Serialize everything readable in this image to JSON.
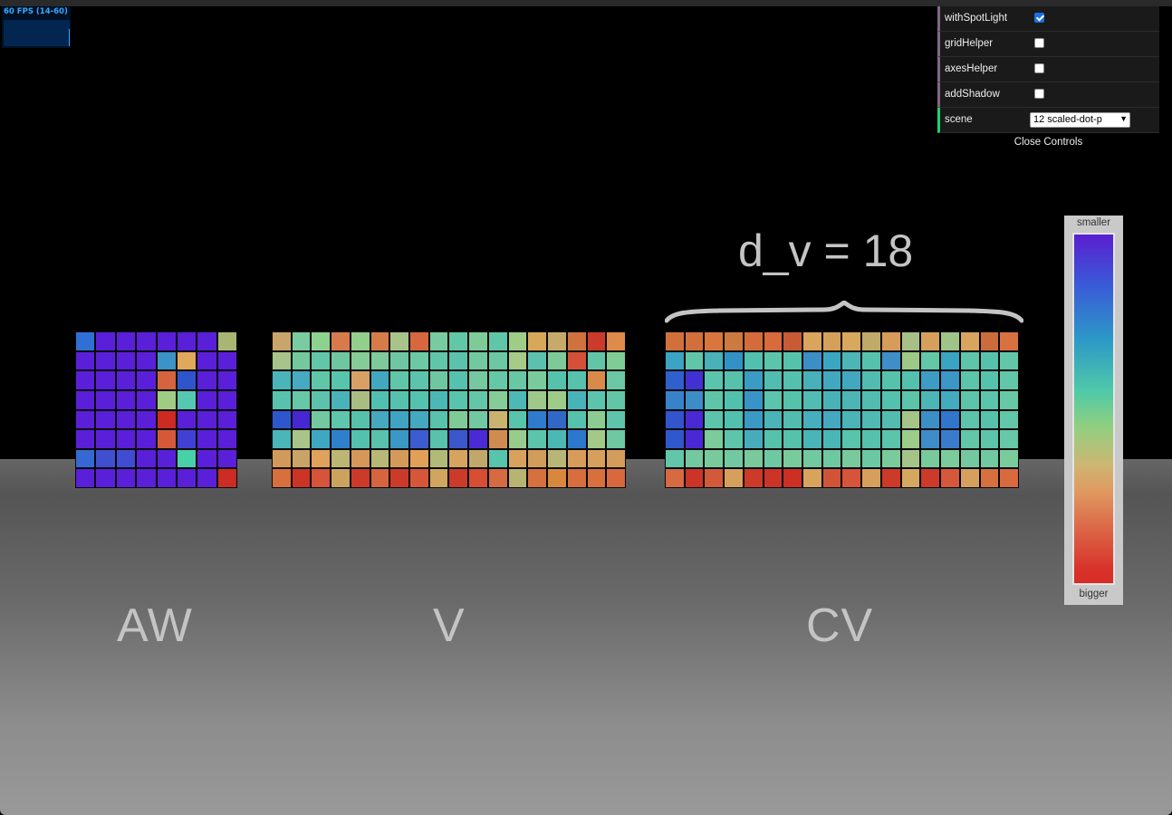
{
  "fps": {
    "text": "60 FPS (14-60)"
  },
  "gui": {
    "rows": [
      {
        "label": "withSpotLight",
        "checked": true
      },
      {
        "label": "gridHelper",
        "checked": false
      },
      {
        "label": "axesHelper",
        "checked": false
      },
      {
        "label": "addShadow",
        "checked": false
      }
    ],
    "scene_label": "scene",
    "scene_value": "12 scaled-dot-p",
    "close_label": "Close Controls"
  },
  "scene": {
    "dv_label": "d_v = 18",
    "labels": {
      "aw": "AW",
      "v": "V",
      "cv": "CV"
    },
    "legend": {
      "top": "smaller",
      "bottom": "bigger"
    }
  },
  "matrices": {
    "aw": {
      "cols": 8,
      "rows": [
        [
          "#2f6fd6",
          "#5a1fd8",
          "#5a1fd8",
          "#5a1fd8",
          "#5a1fd8",
          "#5a1fd8",
          "#5a1fd8",
          "#a9b673"
        ],
        [
          "#5a1fd8",
          "#5a1fd8",
          "#5a1fd8",
          "#5a1fd8",
          "#3b93c6",
          "#e0a85c",
          "#5a1fd8",
          "#5a1fd8"
        ],
        [
          "#5a1fd8",
          "#5a1fd8",
          "#5a1fd8",
          "#5a1fd8",
          "#d4643e",
          "#2f55cc",
          "#5a1fd8",
          "#5a1fd8"
        ],
        [
          "#5a1fd8",
          "#5a1fd8",
          "#5a1fd8",
          "#5a1fd8",
          "#9fcc82",
          "#54c8b0",
          "#5a1fd8",
          "#5a1fd8"
        ],
        [
          "#5a1fd8",
          "#5a1fd8",
          "#5a1fd8",
          "#5a1fd8",
          "#cc2a22",
          "#5a1fd8",
          "#5a1fd8",
          "#5a1fd8"
        ],
        [
          "#5a1fd8",
          "#5a1fd8",
          "#5a1fd8",
          "#5a1fd8",
          "#d4583a",
          "#4040d2",
          "#5a1fd8",
          "#5a1fd8"
        ],
        [
          "#3568d2",
          "#3f4fd0",
          "#3e4dd2",
          "#5a1fd8",
          "#5a1fd8",
          "#48d0a8",
          "#5a1fd8",
          "#5a1fd8"
        ],
        [
          "#5a1fd8",
          "#5a1fd8",
          "#5a1fd8",
          "#5a1fd8",
          "#5a1fd8",
          "#5a1fd8",
          "#5a1fd8",
          "#cc2c24"
        ]
      ]
    },
    "v": {
      "cols": 18,
      "rows": [
        [
          "#c9a56b",
          "#79cba0",
          "#8ed28f",
          "#d97a4c",
          "#92cf8c",
          "#d67c48",
          "#a9c48a",
          "#d8663e",
          "#77cb9e",
          "#62c7a6",
          "#7ecb98",
          "#60c6a8",
          "#9fcd88",
          "#d8a85a",
          "#c7aa6a",
          "#d0723e",
          "#cc3a2c",
          "#de8a4a"
        ],
        [
          "#a8c48a",
          "#74c99c",
          "#62c6a8",
          "#6fc7a2",
          "#86cc96",
          "#7fca9a",
          "#6ec6a2",
          "#6cc9a4",
          "#60c6aa",
          "#5dc2ac",
          "#74c8a0",
          "#6cc8a2",
          "#a6ca88",
          "#5cc0ae",
          "#7dca98",
          "#d45038",
          "#62c5a8",
          "#7fcc96"
        ],
        [
          "#4bb4b8",
          "#46aac0",
          "#60c6a8",
          "#57c4ac",
          "#d9a066",
          "#42a8c0",
          "#60c6aa",
          "#5cc4ac",
          "#6fc7a2",
          "#54c2ae",
          "#75c8a0",
          "#64c8a6",
          "#68c8a4",
          "#7acb9c",
          "#56c2ac",
          "#56c2ac",
          "#d98a4a",
          "#6cc8a4"
        ],
        [
          "#58c2ac",
          "#66c8a6",
          "#5cc2ac",
          "#48b4ba",
          "#aabc82",
          "#52c0b0",
          "#56c2ae",
          "#54c2ae",
          "#4cb8b6",
          "#58c4ac",
          "#64c6a8",
          "#86cc96",
          "#4eb8b4",
          "#9ec98a",
          "#9dcc88",
          "#48b4ba",
          "#5cc4ac",
          "#62c6a6"
        ],
        [
          "#2f57cc",
          "#4628d2",
          "#74c8a0",
          "#5ec6aa",
          "#56c2ac",
          "#46a8c0",
          "#3ea4c2",
          "#44a8c0",
          "#58c2ac",
          "#7ecb98",
          "#72c8a0",
          "#c9b36e",
          "#58c4ac",
          "#2f7bcc",
          "#3168c8",
          "#56c2ac",
          "#8ccc90",
          "#5ec4aa"
        ],
        [
          "#4ab6b8",
          "#a8c48a",
          "#3ea8c2",
          "#2f80cc",
          "#54c0ae",
          "#58c2ac",
          "#3a98c4",
          "#3c5cd0",
          "#58c2ac",
          "#3a58cc",
          "#4a2ad4",
          "#d08c50",
          "#98cc8c",
          "#5cc4aa",
          "#4cb8b4",
          "#2c78cc",
          "#a4c888",
          "#6ec8a2"
        ],
        [
          "#d29a5a",
          "#c8a468",
          "#e0a25a",
          "#bcb672",
          "#d6985a",
          "#b8b876",
          "#d49a5a",
          "#e0a058",
          "#b2ba78",
          "#d6a45e",
          "#c0a86a",
          "#58c4ac",
          "#d8a25e",
          "#d29c5a",
          "#b8b676",
          "#d89c5a",
          "#d6a05c",
          "#d49c5c"
        ],
        [
          "#d8703e",
          "#cc3428",
          "#d6543a",
          "#cca35e",
          "#cc3a2a",
          "#d6643e",
          "#cc3a2a",
          "#d6563a",
          "#d0a65e",
          "#cc3a2a",
          "#d64e34",
          "#d66a40",
          "#b6b470",
          "#d6703e",
          "#d8883c",
          "#d66e3e",
          "#d8703e",
          "#d8683e"
        ]
      ]
    },
    "cv": {
      "cols": 18,
      "rows": [
        [
          "#d2703c",
          "#d2703c",
          "#d8763e",
          "#cc7a40",
          "#d26c3c",
          "#d86a3c",
          "#c85a36",
          "#d8a45e",
          "#d4a05a",
          "#d8a85e",
          "#c0aa6a",
          "#d89c5a",
          "#a8c088",
          "#d6a05c",
          "#a0c488",
          "#d8a45e",
          "#cc6c3c",
          "#d87040"
        ],
        [
          "#3aa4c2",
          "#60c6aa",
          "#48b2b8",
          "#3292c6",
          "#52c0ae",
          "#5cc4aa",
          "#56c2ac",
          "#3c8ec6",
          "#3aa6c2",
          "#4cb6b6",
          "#56c2ae",
          "#3f8ec8",
          "#9ec888",
          "#62c8a6",
          "#3aa4c2",
          "#5ec4aa",
          "#56c2ac",
          "#62c6a8"
        ],
        [
          "#3060cc",
          "#4230d2",
          "#5ac4ac",
          "#56c2ac",
          "#3a9cc4",
          "#52bcb0",
          "#54c0ae",
          "#48b0b8",
          "#42a8c0",
          "#42a8c0",
          "#52bcb0",
          "#56c2ac",
          "#54c0ae",
          "#3c9cc4",
          "#3c96c6",
          "#5cc4aa",
          "#56c2ac",
          "#62c6a8"
        ],
        [
          "#3882cc",
          "#3c8cc8",
          "#5ec4aa",
          "#52c0ae",
          "#3894c6",
          "#5ac4ac",
          "#56c2ac",
          "#50bcb2",
          "#48b2b8",
          "#4cb6b6",
          "#52bcb0",
          "#54c0ae",
          "#5cc4aa",
          "#4cb6b6",
          "#44aabe",
          "#5cc4aa",
          "#5ac4ac",
          "#66c8a6"
        ],
        [
          "#3254cc",
          "#4a28d4",
          "#5cc4aa",
          "#52c0ae",
          "#3a9ac4",
          "#4ab4b6",
          "#52bcb0",
          "#46aebc",
          "#44a8c0",
          "#4ab4b6",
          "#50bab2",
          "#52bcb0",
          "#a4c488",
          "#3c8ec6",
          "#3076ca",
          "#5cc4aa",
          "#56c2ac",
          "#62c6a8"
        ],
        [
          "#2f58cc",
          "#4a28d4",
          "#7ccb9a",
          "#5ec4aa",
          "#46acbc",
          "#56c2ac",
          "#56c2ac",
          "#4ab4b6",
          "#4ab6b6",
          "#58c4ac",
          "#56c2ac",
          "#5cc4aa",
          "#9ccb8a",
          "#3e8cc8",
          "#3a7ccc",
          "#62c6a8",
          "#5ec4aa",
          "#66c8a6"
        ],
        [
          "#62c6a8",
          "#74c8a0",
          "#78c99c",
          "#72c8a0",
          "#7ac99c",
          "#6ec8a2",
          "#7acb9c",
          "#72c8a0",
          "#6ec8a2",
          "#78c99c",
          "#6cc8a2",
          "#7acb9c",
          "#a4c488",
          "#78c99c",
          "#7ccb9a",
          "#74c8a0",
          "#72c8a0",
          "#7acb9c"
        ],
        [
          "#d66a40",
          "#cc3428",
          "#d25a3a",
          "#d6a05c",
          "#cc3a2a",
          "#cc3428",
          "#cc2f24",
          "#d8a45c",
          "#d25438",
          "#d6543a",
          "#d6a05c",
          "#cc3a2a",
          "#d6a85e",
          "#cc3a2a",
          "#d6583a",
          "#d6a05c",
          "#d6703e",
          "#d86a3e"
        ]
      ]
    }
  }
}
